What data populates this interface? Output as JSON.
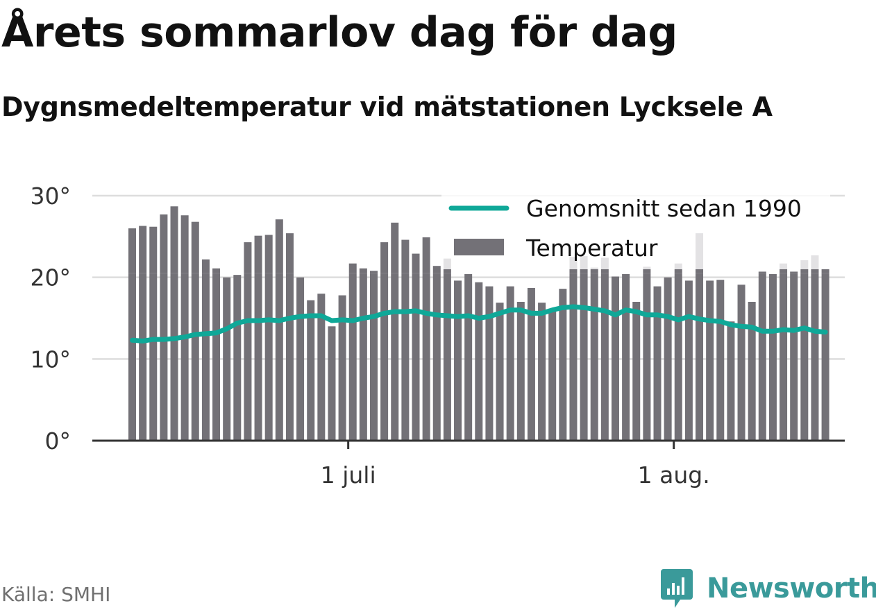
{
  "title": "Årets sommarlov dag för dag",
  "subtitle": "Dygnsmedeltemperatur vid mätstationen Lycksele A",
  "source": "Källa: SMHI",
  "brand": "Newsworthy",
  "colors": {
    "bar": "#737177",
    "bar_above": "#e2e2e4",
    "line": "#0fa898",
    "grid": "#dddddd",
    "axis": "#333333",
    "brand": "#3a9a9a"
  },
  "chart_data": {
    "type": "bar",
    "x_start": "2018-06-10",
    "x_ticks": [
      {
        "date": "2018-07-01",
        "label": "1 juli"
      },
      {
        "date": "2018-08-01",
        "label": "1 aug."
      }
    ],
    "y_ticks": [
      {
        "value": 0,
        "label": "0°"
      },
      {
        "value": 10,
        "label": "10°"
      },
      {
        "value": 20,
        "label": "20°"
      },
      {
        "value": 30,
        "label": "30°"
      }
    ],
    "ylim": [
      0,
      30
    ],
    "grid": true,
    "legend_position": "top-right",
    "series": [
      {
        "name": "Temperatur",
        "type": "bar",
        "values": [
          26.0,
          26.3,
          26.2,
          27.7,
          28.7,
          27.6,
          26.8,
          22.2,
          21.1,
          20.0,
          20.3,
          24.3,
          25.1,
          25.2,
          27.1,
          25.4,
          20.0,
          17.2,
          18.0,
          14.0,
          17.8,
          21.7,
          21.1,
          20.8,
          24.3,
          26.7,
          24.6,
          22.9,
          24.9,
          21.4,
          22.3,
          19.6,
          20.4,
          19.4,
          18.9,
          16.9,
          18.9,
          17.0,
          18.7,
          16.9,
          16.0,
          18.6,
          22.5,
          22.6,
          21.2,
          22.4,
          20.1,
          20.4,
          17.0,
          21.3,
          18.9,
          20.0,
          21.7,
          19.6,
          25.4,
          19.6,
          19.7,
          14.6,
          19.1,
          17.0,
          20.7,
          20.4,
          21.7,
          20.7,
          22.1,
          22.7,
          21.0
        ]
      },
      {
        "name": "Genomsnitt sedan 1990",
        "type": "line",
        "values": [
          12.3,
          12.2,
          12.4,
          12.4,
          12.5,
          12.7,
          13.0,
          13.1,
          13.2,
          13.7,
          14.4,
          14.7,
          14.7,
          14.8,
          14.7,
          15.0,
          15.2,
          15.3,
          15.3,
          14.7,
          14.8,
          14.7,
          15.0,
          15.2,
          15.6,
          15.8,
          15.8,
          15.9,
          15.6,
          15.4,
          15.3,
          15.2,
          15.3,
          15.0,
          15.2,
          15.6,
          16.0,
          16.0,
          15.6,
          15.6,
          16.0,
          16.3,
          16.4,
          16.3,
          16.1,
          15.9,
          15.4,
          16.0,
          15.8,
          15.4,
          15.4,
          15.2,
          14.8,
          15.2,
          14.9,
          14.7,
          14.6,
          14.2,
          14.0,
          13.9,
          13.4,
          13.4,
          13.6,
          13.5,
          13.8,
          13.4,
          13.3
        ]
      }
    ]
  }
}
